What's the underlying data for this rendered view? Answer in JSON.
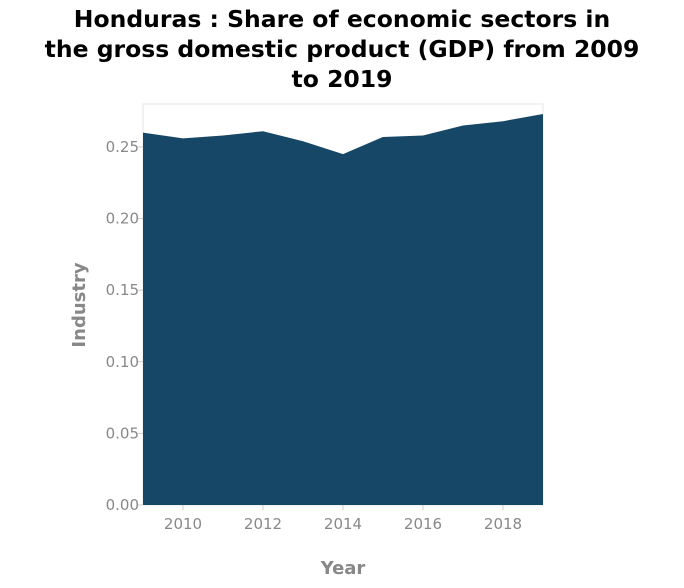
{
  "chart_data": {
    "type": "area",
    "title_lines": [
      "Honduras : Share of economic sectors in",
      "the gross domestic product (GDP) from 2009",
      "to 2019"
    ],
    "xlabel": "Year",
    "ylabel": "Industry",
    "x": [
      2009,
      2010,
      2011,
      2012,
      2013,
      2014,
      2015,
      2016,
      2017,
      2018,
      2019
    ],
    "series": [
      {
        "values": [
          0.26,
          0.256,
          0.258,
          0.261,
          0.254,
          0.245,
          0.257,
          0.258,
          0.265,
          0.268,
          0.273
        ]
      }
    ],
    "xlim": [
      2009,
      2019
    ],
    "ylim": [
      0,
      0.28
    ],
    "x_ticks": [
      2010,
      2012,
      2014,
      2016,
      2018
    ],
    "x_tick_labels": [
      "2010",
      "2012",
      "2014",
      "2016",
      "2018"
    ],
    "y_ticks": [
      0,
      0.05,
      0.1,
      0.15,
      0.2,
      0.25
    ],
    "y_tick_labels": [
      "0.00",
      "0.05",
      "0.10",
      "0.15",
      "0.20",
      "0.25"
    ],
    "grid": false,
    "legend": "none",
    "colors": {
      "area": "#174766",
      "tick_text": "#888888",
      "axis_label": "#888888",
      "title": "#000000",
      "frame": "#e5e5e5"
    }
  }
}
